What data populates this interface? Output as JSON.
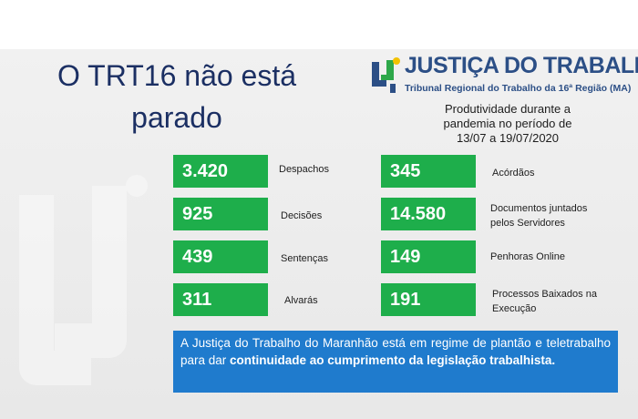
{
  "headline": {
    "line1": "O TRT16 não está",
    "line2": "parado"
  },
  "logo": {
    "title": "JUSTIÇA DO TRABALHO",
    "subtitle": "Tribunal Regional do Trabalho da 16ª Região (MA)"
  },
  "period": {
    "line1": "Produtividade durante a",
    "line2": "pandemia no período de",
    "line3": "13/07 a 19/07/2020"
  },
  "stats_left": [
    {
      "value": "3.420",
      "label": "Despachos"
    },
    {
      "value": "925",
      "label": "Decisões"
    },
    {
      "value": "439",
      "label": "Sentenças"
    },
    {
      "value": "311",
      "label": "Alvarás"
    }
  ],
  "stats_right": [
    {
      "value": "345",
      "label_line1": "Acórdãos",
      "label_line2": ""
    },
    {
      "value": "14.580",
      "label_line1": "Documentos juntados",
      "label_line2": "pelos Servidores"
    },
    {
      "value": "149",
      "label_line1": "Penhoras Online",
      "label_line2": ""
    },
    {
      "value": "191",
      "label_line1": "Processos Baixados na",
      "label_line2": "Execução"
    }
  ],
  "note": {
    "text": "A Justiça do Trabalho do Maranhão está em regime de plantão e teletrabalho para dar ",
    "bold": "continuidade ao cumprimento da legislação trabalhista."
  },
  "colors": {
    "box_green": "#1eae4b",
    "note_blue": "#1f7bcd",
    "headline_navy": "#1b2f63",
    "logo_blue": "#2c4f86",
    "logo_green": "#2ea84a",
    "logo_yellow": "#f2c200"
  }
}
